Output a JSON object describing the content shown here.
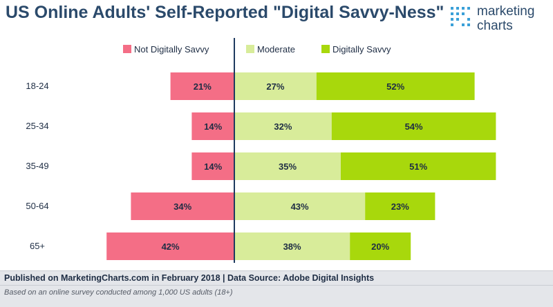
{
  "title": "US Online Adults' Self-Reported \"Digital Savvy-Ness\"",
  "logo": {
    "line1": "marketing",
    "line2": "charts",
    "icon": "dot-matrix-logo-icon"
  },
  "footer": {
    "source": "Published on MarketingCharts.com in February 2018 | Data Source: Adobe Digital Insights",
    "note": "Based on an online survey conducted among 1,000 US adults (18+)"
  },
  "colors": {
    "not_savvy": "#f46e86",
    "moderate": "#d8ec9a",
    "savvy": "#a8d80c",
    "axis": "#1e3a5f",
    "title": "#2b4a6b"
  },
  "chart_data": {
    "type": "bar",
    "orientation": "horizontal-diverging",
    "title": "US Online Adults' Self-Reported \"Digital Savvy-Ness\"",
    "categories": [
      "18-24",
      "25-34",
      "35-49",
      "50-64",
      "65+"
    ],
    "series": [
      {
        "name": "Not Digitally Savvy",
        "values": [
          21,
          14,
          14,
          34,
          42
        ],
        "labels": [
          "21%",
          "14%",
          "14%",
          "34%",
          "42%"
        ]
      },
      {
        "name": "Moderate",
        "values": [
          27,
          32,
          35,
          43,
          38
        ],
        "labels": [
          "27%",
          "32%",
          "35%",
          "43%",
          "38%"
        ]
      },
      {
        "name": "Digitally Savvy",
        "values": [
          52,
          54,
          51,
          23,
          20
        ],
        "labels": [
          "52%",
          "54%",
          "51%",
          "23%",
          "20%"
        ]
      }
    ],
    "legend_position": "top",
    "grid": false
  }
}
